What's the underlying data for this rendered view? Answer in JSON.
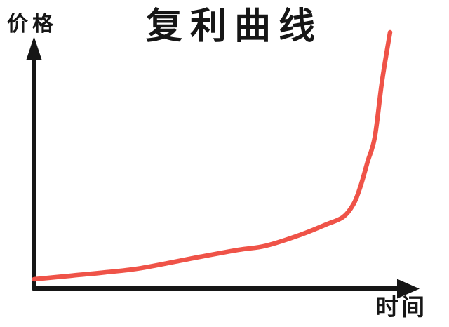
{
  "page": {
    "background": "#ffffff"
  },
  "chart_data": {
    "type": "line",
    "title": "复利曲线",
    "ylabel": "价格",
    "xlabel": "时间",
    "grid": false,
    "tick_labels": [],
    "axis_color": "#161616",
    "x_range": [
      0,
      1
    ],
    "y_range": [
      0,
      1
    ],
    "series": [
      {
        "name": "compound-interest-curve",
        "color": "#EF5348",
        "line_width": 6.5,
        "x": [
          0,
          0.1,
          0.2,
          0.3,
          0.456,
          0.574,
          0.652,
          0.75,
          0.819,
          0.868,
          0.898,
          0.917,
          0.937,
          0.957,
          0.976,
          0.99,
          1.0
        ],
        "y": [
          0,
          0.014,
          0.028,
          0.045,
          0.088,
          0.119,
          0.136,
          0.181,
          0.221,
          0.252,
          0.306,
          0.377,
          0.476,
          0.575,
          0.787,
          0.915,
          1.0
        ]
      }
    ]
  }
}
